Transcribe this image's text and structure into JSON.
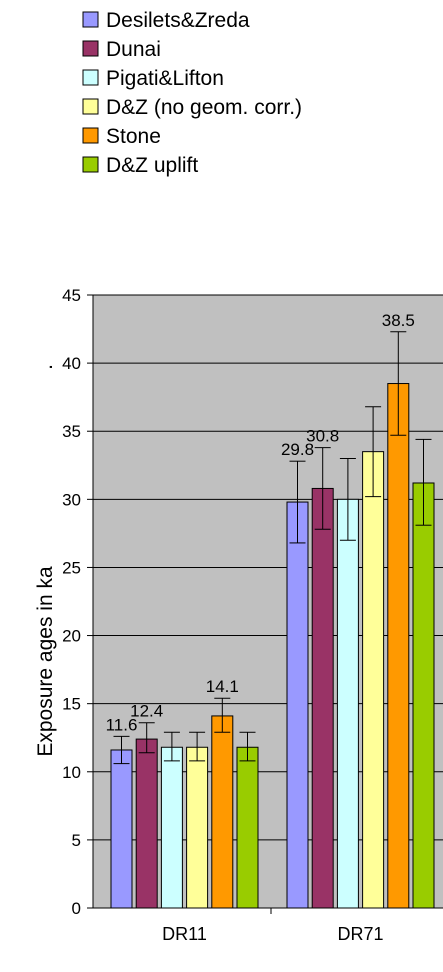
{
  "chart_data": {
    "type": "bar",
    "ylabel": "Exposure ages in ka",
    "ylabel_suffix": ".",
    "ylim": [
      0,
      45
    ],
    "yticks": [
      0,
      5,
      10,
      15,
      20,
      25,
      30,
      35,
      40,
      45
    ],
    "grid": true,
    "legend_position": "top-left",
    "plot_background": "#c0c0c0",
    "categories": [
      "DR11",
      "DR71"
    ],
    "series": [
      {
        "name": "Desilets&Zreda",
        "color": "#9999ff",
        "values": [
          11.6,
          29.8
        ],
        "err_low": [
          1.0,
          3.0
        ],
        "err_high": [
          1.0,
          3.0
        ],
        "labels": [
          "11.6",
          "29.8"
        ]
      },
      {
        "name": "Dunai",
        "color": "#993366",
        "values": [
          12.4,
          30.8
        ],
        "err_low": [
          1.0,
          3.0
        ],
        "err_high": [
          1.2,
          3.0
        ],
        "labels": [
          "12.4",
          "30.8"
        ]
      },
      {
        "name": "Pigati&Lifton",
        "color": "#ccffff",
        "values": [
          11.8,
          30.0
        ],
        "err_low": [
          1.0,
          3.0
        ],
        "err_high": [
          1.1,
          3.0
        ],
        "labels": [
          "",
          ""
        ]
      },
      {
        "name": "D&Z (no geom. corr.)",
        "color": "#ffff99",
        "values": [
          11.8,
          33.5
        ],
        "err_low": [
          1.0,
          3.3
        ],
        "err_high": [
          1.1,
          3.3
        ],
        "labels": [
          "",
          ""
        ]
      },
      {
        "name": "Stone",
        "color": "#ff9900",
        "values": [
          14.1,
          38.5
        ],
        "err_low": [
          1.2,
          3.8
        ],
        "err_high": [
          1.3,
          3.8
        ],
        "labels": [
          "14.1",
          "38.5"
        ]
      },
      {
        "name": "D&Z uplift",
        "color": "#99cc00",
        "values": [
          11.8,
          31.2
        ],
        "err_low": [
          1.0,
          3.1
        ],
        "err_high": [
          1.1,
          3.2
        ],
        "labels": [
          "",
          ""
        ]
      }
    ]
  }
}
